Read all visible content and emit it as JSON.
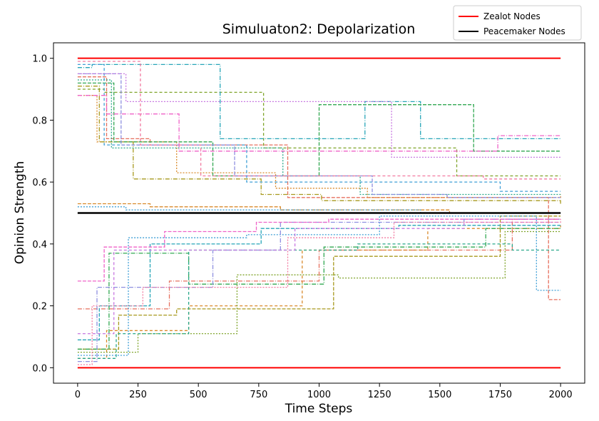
{
  "chart_data": {
    "type": "line",
    "title": "Simuluaton2: Depolarization",
    "xlabel": "Time Steps",
    "ylabel": "Opinion Strength",
    "xlim": [
      -100,
      2100
    ],
    "ylim": [
      -0.05,
      1.05
    ],
    "xticks": [
      0,
      250,
      500,
      750,
      1000,
      1250,
      1500,
      1750,
      2000
    ],
    "yticks": [
      0.0,
      0.2,
      0.4,
      0.6,
      0.8,
      1.0
    ],
    "grid": false,
    "legend_position": "top-right (outside plot, above)",
    "legend": [
      {
        "label": "Zealot Nodes",
        "color": "#ff0000"
      },
      {
        "label": "Peacemaker Nodes",
        "color": "#000000"
      }
    ],
    "zealot_levels": [
      0.0,
      1.0
    ],
    "peacemaker_level": 0.5,
    "palette": [
      "#e6705f",
      "#d98a2b",
      "#a89a1f",
      "#7fa42a",
      "#32a852",
      "#2aa88a",
      "#27a5b8",
      "#3f9fd6",
      "#8e8fe0",
      "#c777e0",
      "#ef63c8",
      "#f27aa0"
    ],
    "series": [
      {
        "color_index": 0,
        "x": [
          0,
          120,
          300,
          870,
          1950,
          2000
        ],
        "y": [
          0.94,
          0.74,
          0.72,
          0.55,
          0.22,
          0.22
        ]
      },
      {
        "color_index": 1,
        "x": [
          0,
          80,
          410,
          820,
          1200,
          2000
        ],
        "y": [
          0.88,
          0.73,
          0.63,
          0.58,
          0.55,
          0.56
        ]
      },
      {
        "color_index": 2,
        "x": [
          0,
          90,
          230,
          760,
          1010,
          2000
        ],
        "y": [
          0.91,
          0.73,
          0.61,
          0.56,
          0.54,
          0.53
        ]
      },
      {
        "color_index": 3,
        "x": [
          0,
          110,
          770,
          1000,
          1570,
          2000
        ],
        "y": [
          0.9,
          0.89,
          0.71,
          0.71,
          0.62,
          0.62
        ]
      },
      {
        "color_index": 4,
        "x": [
          0,
          150,
          560,
          1000,
          1640,
          2000
        ],
        "y": [
          0.92,
          0.73,
          0.62,
          0.85,
          0.7,
          0.7
        ]
      },
      {
        "color_index": 5,
        "x": [
          0,
          140,
          850,
          1170,
          1750,
          2000
        ],
        "y": [
          0.93,
          0.71,
          0.62,
          0.56,
          0.56,
          0.56
        ]
      },
      {
        "color_index": 6,
        "x": [
          0,
          60,
          590,
          1190,
          1420,
          2000
        ],
        "y": [
          0.97,
          0.98,
          0.74,
          0.86,
          0.74,
          0.74
        ]
      },
      {
        "color_index": 7,
        "x": [
          0,
          110,
          700,
          1290,
          1750,
          2000
        ],
        "y": [
          0.98,
          0.72,
          0.6,
          0.6,
          0.57,
          0.57
        ]
      },
      {
        "color_index": 8,
        "x": [
          0,
          180,
          650,
          1220,
          1530,
          2000
        ],
        "y": [
          0.95,
          0.72,
          0.62,
          0.56,
          0.55,
          0.55
        ]
      },
      {
        "color_index": 9,
        "x": [
          0,
          200,
          580,
          1300,
          1900,
          2000
        ],
        "y": [
          0.95,
          0.86,
          0.86,
          0.68,
          0.68,
          0.68
        ]
      },
      {
        "color_index": 10,
        "x": [
          0,
          120,
          420,
          1330,
          1740,
          2000
        ],
        "y": [
          0.88,
          0.82,
          0.7,
          0.7,
          0.75,
          0.75
        ]
      },
      {
        "color_index": 11,
        "x": [
          0,
          260,
          510,
          1150,
          1680,
          2000
        ],
        "y": [
          0.99,
          0.72,
          0.62,
          0.62,
          0.61,
          0.61
        ]
      },
      {
        "color_index": 1,
        "x": [
          0,
          300,
          840,
          1540,
          2000
        ],
        "y": [
          0.53,
          0.52,
          0.51,
          0.5,
          0.5
        ]
      },
      {
        "color_index": 7,
        "x": [
          0,
          200,
          900,
          1420,
          2000
        ],
        "y": [
          0.52,
          0.51,
          0.51,
          0.5,
          0.5
        ]
      },
      {
        "color_index": 0,
        "x": [
          0,
          380,
          1000,
          1800,
          2000
        ],
        "y": [
          0.19,
          0.28,
          0.38,
          0.48,
          0.48
        ]
      },
      {
        "color_index": 1,
        "x": [
          0,
          120,
          460,
          930,
          1450,
          2000
        ],
        "y": [
          0.03,
          0.12,
          0.2,
          0.38,
          0.45,
          0.46
        ]
      },
      {
        "color_index": 2,
        "x": [
          0,
          170,
          410,
          1060,
          1750,
          2000
        ],
        "y": [
          0.06,
          0.17,
          0.19,
          0.36,
          0.49,
          0.49
        ]
      },
      {
        "color_index": 3,
        "x": [
          0,
          250,
          660,
          1080,
          1770,
          2000
        ],
        "y": [
          0.05,
          0.11,
          0.3,
          0.29,
          0.44,
          0.44
        ]
      },
      {
        "color_index": 4,
        "x": [
          0,
          130,
          460,
          1020,
          1690,
          2000
        ],
        "y": [
          0.06,
          0.37,
          0.27,
          0.39,
          0.45,
          0.45
        ]
      },
      {
        "color_index": 5,
        "x": [
          0,
          160,
          460,
          1160,
          1800,
          2000
        ],
        "y": [
          0.03,
          0.11,
          0.38,
          0.4,
          0.38,
          0.38
        ]
      },
      {
        "color_index": 6,
        "x": [
          0,
          90,
          300,
          760,
          1330,
          2000
        ],
        "y": [
          0.09,
          0.2,
          0.4,
          0.45,
          0.46,
          0.46
        ]
      },
      {
        "color_index": 7,
        "x": [
          0,
          210,
          700,
          1250,
          1900,
          2000
        ],
        "y": [
          0.04,
          0.42,
          0.43,
          0.49,
          0.25,
          0.25
        ]
      },
      {
        "color_index": 8,
        "x": [
          0,
          80,
          560,
          840,
          1600,
          2000
        ],
        "y": [
          0.02,
          0.26,
          0.38,
          0.47,
          0.48,
          0.48
        ]
      },
      {
        "color_index": 9,
        "x": [
          0,
          150,
          460,
          900,
          1600,
          2000
        ],
        "y": [
          0.11,
          0.38,
          0.38,
          0.45,
          0.47,
          0.47
        ]
      },
      {
        "color_index": 10,
        "x": [
          0,
          110,
          360,
          740,
          1040,
          2000
        ],
        "y": [
          0.28,
          0.39,
          0.44,
          0.47,
          0.48,
          0.48
        ]
      },
      {
        "color_index": 11,
        "x": [
          0,
          60,
          270,
          870,
          1310,
          2000
        ],
        "y": [
          0.01,
          0.2,
          0.26,
          0.42,
          0.47,
          0.48
        ]
      }
    ]
  }
}
